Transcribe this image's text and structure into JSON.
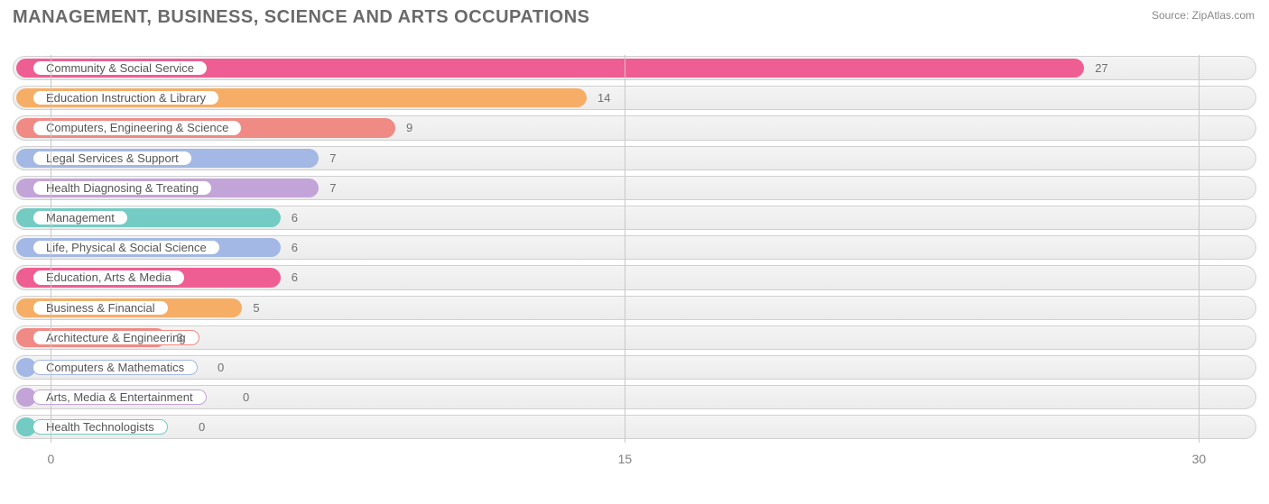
{
  "header": {
    "title": "MANAGEMENT, BUSINESS, SCIENCE AND ARTS OCCUPATIONS",
    "source_label": "Source: ZipAtlas.com"
  },
  "chart": {
    "type": "bar-horizontal",
    "background_color": "#ffffff",
    "track_bg": "#efefef",
    "track_border": "#d0d0d0",
    "grid_color": "#c8c8c8",
    "text_color": "#707070",
    "title_color": "#6a6a6a",
    "x_axis": {
      "min": -1,
      "max": 31.5,
      "ticks": [
        0,
        15,
        30
      ]
    },
    "colors": {
      "pink": "#ef5e93",
      "orange": "#f6ae67",
      "salmon": "#ef8a85",
      "blue": "#a3b8e4",
      "purple": "#c3a4d9",
      "teal": "#74cbc4"
    },
    "bars": [
      {
        "label": "Community & Social Service",
        "value": 27,
        "color": "pink"
      },
      {
        "label": "Education Instruction & Library",
        "value": 14,
        "color": "orange"
      },
      {
        "label": "Computers, Engineering & Science",
        "value": 9,
        "color": "salmon"
      },
      {
        "label": "Legal Services & Support",
        "value": 7,
        "color": "blue"
      },
      {
        "label": "Health Diagnosing & Treating",
        "value": 7,
        "color": "purple"
      },
      {
        "label": "Management",
        "value": 6,
        "color": "teal"
      },
      {
        "label": "Life, Physical & Social Science",
        "value": 6,
        "color": "blue"
      },
      {
        "label": "Education, Arts & Media",
        "value": 6,
        "color": "pink"
      },
      {
        "label": "Business & Financial",
        "value": 5,
        "color": "orange"
      },
      {
        "label": "Architecture & Engineering",
        "value": 3,
        "color": "salmon"
      },
      {
        "label": "Computers & Mathematics",
        "value": 0,
        "color": "blue"
      },
      {
        "label": "Arts, Media & Entertainment",
        "value": 0,
        "color": "purple"
      },
      {
        "label": "Health Technologists",
        "value": 0,
        "color": "teal"
      }
    ]
  }
}
